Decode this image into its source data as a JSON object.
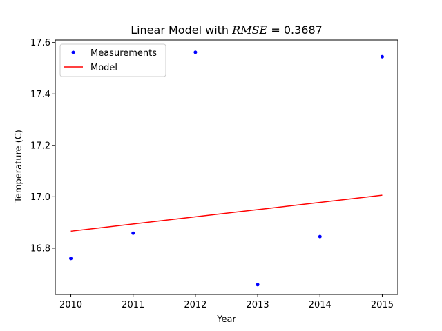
{
  "chart_data": {
    "type": "scatter",
    "title": "Linear  Model with RMSE =  0.3687",
    "title_parts": {
      "prefix": "Linear  Model with ",
      "math": "RMSE",
      "suffix": " =  0.3687"
    },
    "xlabel": "Year",
    "ylabel": "Temperature (C)",
    "xlim": [
      2009.75,
      2015.25
    ],
    "ylim": [
      16.62,
      17.61
    ],
    "xticks": [
      2010,
      2011,
      2012,
      2013,
      2014,
      2015
    ],
    "xtick_labels": [
      "2010",
      "2011",
      "2012",
      "2013",
      "2014",
      "2015"
    ],
    "yticks": [
      16.8,
      17.0,
      17.2,
      17.4,
      17.6
    ],
    "ytick_labels": [
      "16.8",
      "17.0",
      "17.2",
      "17.4",
      "17.6"
    ],
    "grid": false,
    "legend_placement": "top-left",
    "series": [
      {
        "name": "Measurements",
        "kind": "points",
        "color": "#0000ff",
        "x": [
          2010,
          2011,
          2012,
          2013,
          2014,
          2015
        ],
        "y": [
          16.76,
          16.858,
          17.562,
          16.658,
          16.845,
          17.545
        ]
      },
      {
        "name": "Model",
        "kind": "line",
        "color": "#ff0000",
        "x": [
          2010,
          2015
        ],
        "y": [
          16.866,
          17.006
        ]
      }
    ]
  }
}
